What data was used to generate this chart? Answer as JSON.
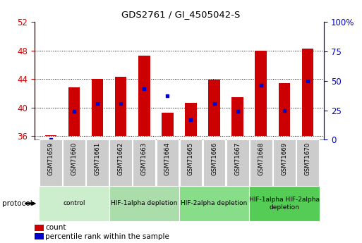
{
  "title": "GDS2761 / GI_4505042-S",
  "samples": [
    "GSM71659",
    "GSM71660",
    "GSM71661",
    "GSM71662",
    "GSM71663",
    "GSM71664",
    "GSM71665",
    "GSM71666",
    "GSM71667",
    "GSM71668",
    "GSM71669",
    "GSM71670"
  ],
  "count_values": [
    36.1,
    42.8,
    44.0,
    44.3,
    47.3,
    39.3,
    40.7,
    43.9,
    41.5,
    48.0,
    43.4,
    48.3
  ],
  "percentile_values": [
    0.5,
    24,
    31,
    31,
    43,
    37,
    17,
    31,
    24,
    46,
    25,
    50
  ],
  "ylim_left": [
    35.5,
    52
  ],
  "ylim_right": [
    0,
    100
  ],
  "yticks_left": [
    36,
    40,
    44,
    48,
    52
  ],
  "yticks_right": [
    0,
    25,
    50,
    75,
    100
  ],
  "bar_color": "#cc0000",
  "marker_color": "#0000cc",
  "bar_bottom": 36,
  "groups": [
    {
      "label": "control",
      "start": 0,
      "end": 3,
      "color": "#cceecc"
    },
    {
      "label": "HIF-1alpha depletion",
      "start": 3,
      "end": 6,
      "color": "#aaddaa"
    },
    {
      "label": "HIF-2alpha depletion",
      "start": 6,
      "end": 9,
      "color": "#88dd88"
    },
    {
      "label": "HIF-1alpha HIF-2alpha\ndepletion",
      "start": 9,
      "end": 12,
      "color": "#55cc55"
    }
  ],
  "tick_color_left": "#cc0000",
  "tick_color_right": "#0000cc",
  "grid_color": "#000000",
  "bar_width": 0.5,
  "protocol_label": "protocol",
  "sample_box_color": "#cccccc",
  "bg_color": "#ffffff"
}
